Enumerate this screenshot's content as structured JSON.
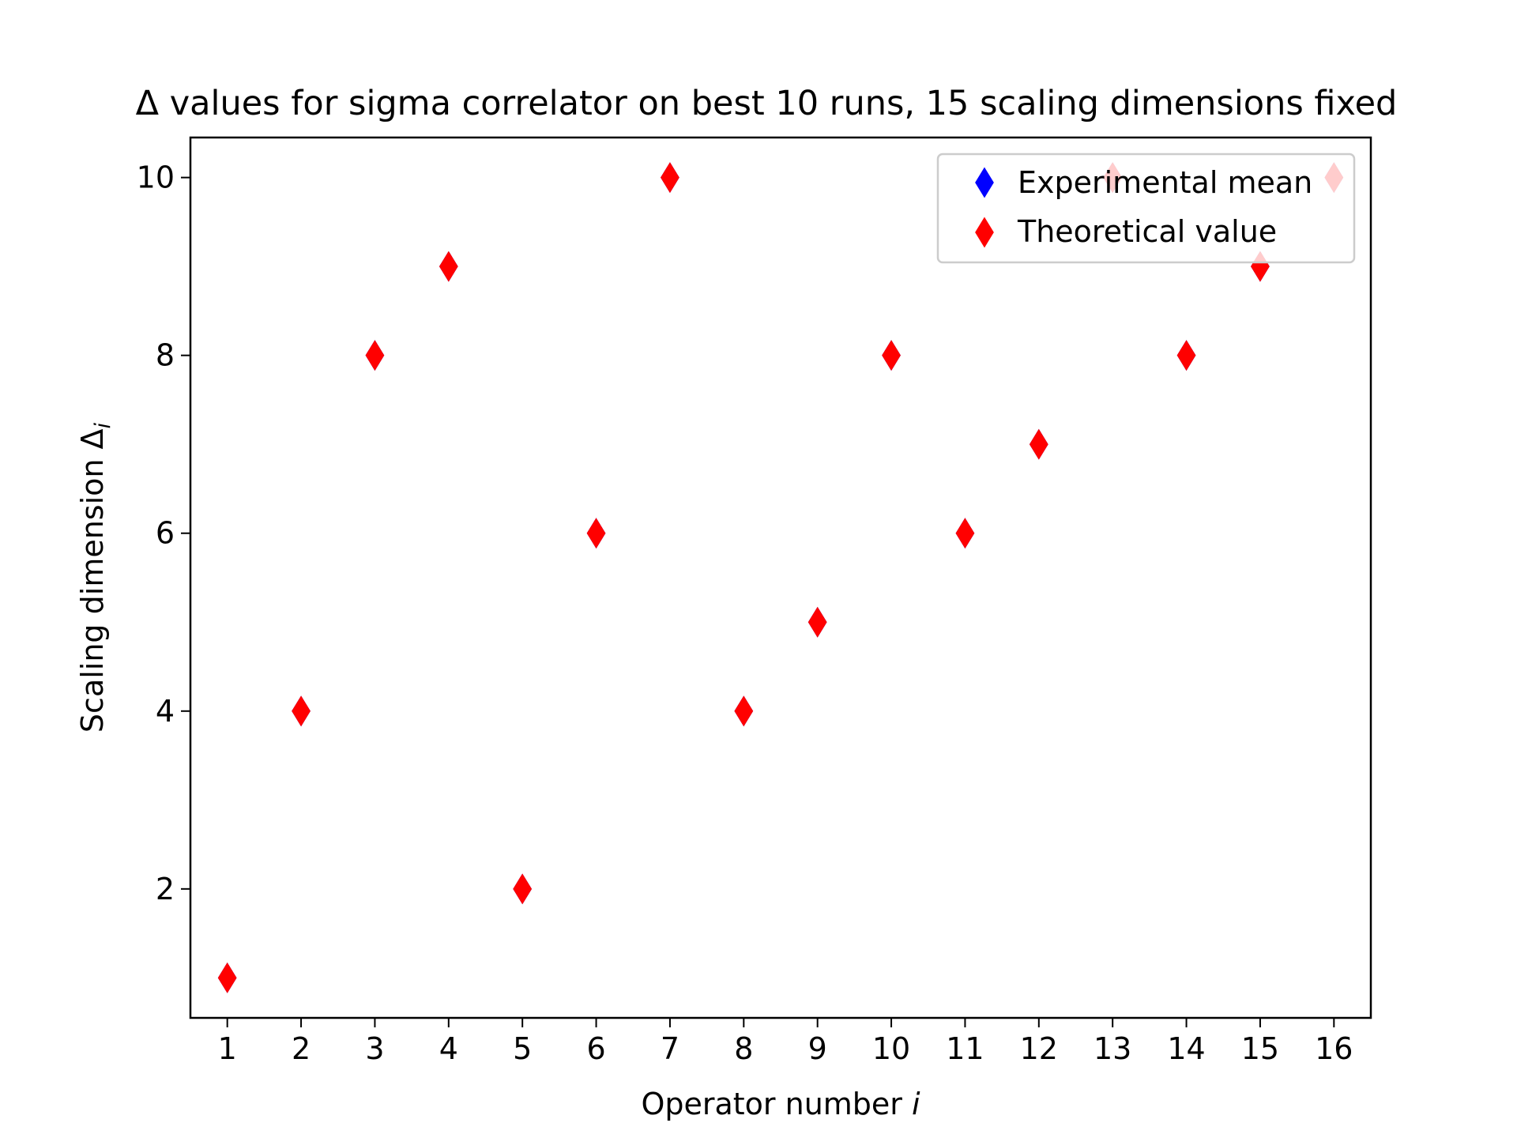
{
  "chart_data": {
    "type": "scatter",
    "title": "Δ values for sigma correlator on best 10 runs, 15 scaling dimensions fixed",
    "xlabel": "Operator number i",
    "xlabel_main": "Operator number ",
    "xlabel_var": "i",
    "ylabel": "Scaling dimension Δi",
    "ylabel_main": "Scaling dimension Δ",
    "ylabel_sub": "i",
    "xlim": [
      0.5,
      16.5
    ],
    "ylim": [
      0.55,
      10.45
    ],
    "xticks": [
      1,
      2,
      3,
      4,
      5,
      6,
      7,
      8,
      9,
      10,
      11,
      12,
      13,
      14,
      15,
      16
    ],
    "yticks": [
      2,
      4,
      6,
      8,
      10
    ],
    "grid": false,
    "legend_position": "top-right",
    "series": [
      {
        "name": "Experimental mean",
        "color": "#0000ff",
        "marker": "thin-diamond",
        "x": [
          1,
          2,
          3,
          4,
          5,
          6,
          7,
          8,
          9,
          10,
          11,
          12,
          13,
          14,
          15,
          16
        ],
        "values": [
          1,
          4,
          8,
          9,
          2,
          6,
          10,
          4,
          5,
          8,
          6,
          7,
          10,
          8,
          9,
          10
        ]
      },
      {
        "name": "Theoretical value",
        "color": "#ff0000",
        "marker": "thin-diamond",
        "x": [
          1,
          2,
          3,
          4,
          5,
          6,
          7,
          8,
          9,
          10,
          11,
          12,
          13,
          14,
          15,
          16
        ],
        "values": [
          1,
          4,
          8,
          9,
          2,
          6,
          10,
          4,
          5,
          8,
          6,
          7,
          10,
          8,
          9,
          10
        ]
      }
    ]
  }
}
